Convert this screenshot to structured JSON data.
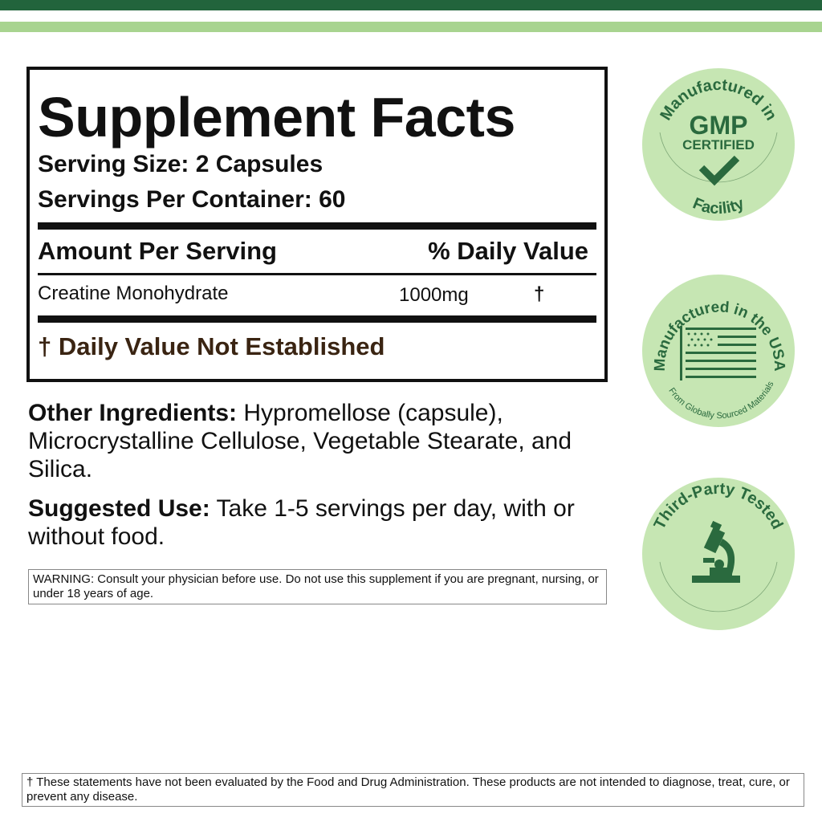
{
  "colors": {
    "dark_green": "#22643c",
    "light_green": "#a8d490",
    "badge_fill": "#c6e6b3",
    "badge_text": "#2a6a3e"
  },
  "facts": {
    "title": "Supplement Facts",
    "serving_size": "Serving Size: 2 Capsules",
    "servings_per_container": "Servings Per Container:  60",
    "header_amount": "Amount Per Serving",
    "header_dv": "% Daily Value",
    "ingredients": [
      {
        "name": "Creatine Monohydrate",
        "amount": "1000mg",
        "dv": "†"
      }
    ],
    "footnote": "† Daily Value Not Established"
  },
  "other_ingredients": {
    "label": "Other Ingredients:",
    "text": " Hypromellose (capsule), Microcrystalline Cellulose, Vegetable Stearate, and Silica."
  },
  "suggested_use": {
    "label": "Suggested Use:",
    "text": " Take 1-5 servings per day, with or without food."
  },
  "warning": "WARNING: Consult your physician before use. Do not use this supplement if you are pregnant, nursing, or under 18 years of age.",
  "disclaimer": "† These statements have not been evaluated by the Food and Drug Administration. These products are not intended to diagnose, treat, cure, or prevent any disease.",
  "badges": [
    {
      "top": "Manufactured in",
      "main": "GMP",
      "sub": "CERTIFIED",
      "bottom": "Facility",
      "icon": "checkmark-icon"
    },
    {
      "top": "Manufactured in the USA",
      "bottom": "From Globally Sourced Materials",
      "icon": "us-flag-icon"
    },
    {
      "top": "Third-Party Tested",
      "icon": "microscope-icon"
    }
  ]
}
